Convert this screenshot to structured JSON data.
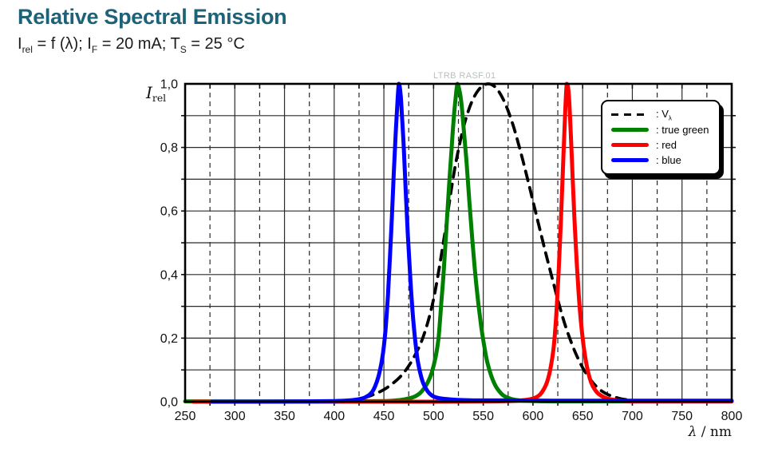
{
  "header": {
    "title": "Relative Spectral Emission",
    "title_color": "#1e6278",
    "subtitle_parts": [
      {
        "text": "I"
      },
      {
        "sub": "rel"
      },
      {
        "text": " = f (λ); I"
      },
      {
        "sub": "F"
      },
      {
        "text": " = 20 mA; T"
      },
      {
        "sub": "S"
      },
      {
        "text": " = 25 °C"
      }
    ]
  },
  "watermark": {
    "text": "LTRB RASF.01"
  },
  "chart_data": {
    "type": "line",
    "title": "Relative Spectral Emission",
    "condition": "Irel = f (λ); IF = 20 mA; TS = 25 °C",
    "xlabel": "λ / nm",
    "ylabel": "Irel",
    "xlabel_parts": [
      {
        "text": "λ",
        "italic": true
      },
      {
        "text": " / nm"
      }
    ],
    "ylabel_parts": [
      {
        "text": "I",
        "italic": true
      },
      {
        "sub": "rel"
      }
    ],
    "xlim": [
      250,
      800
    ],
    "ylim": [
      0,
      1.0
    ],
    "x_major_step": 50,
    "x_minor_step": 25,
    "y_major_step": 0.2,
    "y_minor_step": 0.1,
    "grid": true,
    "legend_position": "top-right",
    "x_tick_labels": [
      "250",
      "300",
      "350",
      "400",
      "450",
      "500",
      "550",
      "600",
      "650",
      "700",
      "750",
      "800"
    ],
    "y_tick_labels": [
      "0,0",
      "0,2",
      "0,4",
      "0,6",
      "0,8",
      "1,0"
    ],
    "series": [
      {
        "name": "V-lambda",
        "legend_label_parts": [
          {
            "text": ": V"
          },
          {
            "sub": "λ"
          }
        ],
        "color": "#000000",
        "dash": true,
        "peak_nm": 555,
        "points": [
          [
            430,
            0.012
          ],
          [
            440,
            0.023
          ],
          [
            450,
            0.038
          ],
          [
            460,
            0.06
          ],
          [
            470,
            0.091
          ],
          [
            480,
            0.139
          ],
          [
            490,
            0.208
          ],
          [
            500,
            0.323
          ],
          [
            510,
            0.503
          ],
          [
            515,
            0.608
          ],
          [
            520,
            0.71
          ],
          [
            525,
            0.793
          ],
          [
            530,
            0.862
          ],
          [
            535,
            0.915
          ],
          [
            540,
            0.954
          ],
          [
            545,
            0.98
          ],
          [
            550,
            0.995
          ],
          [
            555,
            1.0
          ],
          [
            560,
            0.995
          ],
          [
            565,
            0.979
          ],
          [
            570,
            0.952
          ],
          [
            575,
            0.915
          ],
          [
            580,
            0.87
          ],
          [
            585,
            0.816
          ],
          [
            590,
            0.757
          ],
          [
            595,
            0.695
          ],
          [
            600,
            0.631
          ],
          [
            605,
            0.567
          ],
          [
            610,
            0.503
          ],
          [
            615,
            0.441
          ],
          [
            620,
            0.381
          ],
          [
            625,
            0.321
          ],
          [
            630,
            0.265
          ],
          [
            635,
            0.217
          ],
          [
            640,
            0.175
          ],
          [
            645,
            0.138
          ],
          [
            650,
            0.107
          ],
          [
            655,
            0.082
          ],
          [
            660,
            0.061
          ],
          [
            665,
            0.044
          ],
          [
            670,
            0.032
          ],
          [
            675,
            0.023
          ],
          [
            680,
            0.017
          ],
          [
            685,
            0.012
          ],
          [
            690,
            0.008
          ],
          [
            695,
            0.006
          ],
          [
            700,
            0.004
          ]
        ]
      },
      {
        "name": "true green",
        "legend_label_parts": [
          {
            "text": ": true green"
          }
        ],
        "color": "#008000",
        "dash": false,
        "peak_nm": 524,
        "points": [
          [
            250,
            0.001
          ],
          [
            300,
            0.001
          ],
          [
            400,
            0.001
          ],
          [
            450,
            0.002
          ],
          [
            462,
            0.004
          ],
          [
            470,
            0.007
          ],
          [
            476,
            0.011
          ],
          [
            481,
            0.016
          ],
          [
            486,
            0.026
          ],
          [
            490,
            0.04
          ],
          [
            494,
            0.06
          ],
          [
            498,
            0.09
          ],
          [
            502,
            0.14
          ],
          [
            505,
            0.2
          ],
          [
            508,
            0.32
          ],
          [
            510,
            0.4
          ],
          [
            512,
            0.5
          ],
          [
            514,
            0.6
          ],
          [
            516,
            0.7
          ],
          [
            518,
            0.79
          ],
          [
            520,
            0.88
          ],
          [
            522,
            0.95
          ],
          [
            524,
            1.0
          ],
          [
            526,
            0.98
          ],
          [
            528,
            0.94
          ],
          [
            530,
            0.87
          ],
          [
            533,
            0.76
          ],
          [
            536,
            0.63
          ],
          [
            539,
            0.51
          ],
          [
            542,
            0.4
          ],
          [
            545,
            0.31
          ],
          [
            548,
            0.235
          ],
          [
            551,
            0.175
          ],
          [
            554,
            0.125
          ],
          [
            558,
            0.082
          ],
          [
            562,
            0.052
          ],
          [
            566,
            0.033
          ],
          [
            570,
            0.02
          ],
          [
            575,
            0.012
          ],
          [
            580,
            0.007
          ],
          [
            586,
            0.004
          ],
          [
            592,
            0.003
          ],
          [
            600,
            0.002
          ],
          [
            620,
            0.001
          ],
          [
            700,
            0.001
          ],
          [
            800,
            0.001
          ]
        ]
      },
      {
        "name": "red",
        "legend_label_parts": [
          {
            "text": ": red"
          }
        ],
        "color": "#ff0000",
        "dash": false,
        "peak_nm": 634,
        "points": [
          [
            258,
            0
          ],
          [
            300,
            0
          ],
          [
            400,
            0
          ],
          [
            500,
            0
          ],
          [
            550,
            0.001
          ],
          [
            575,
            0.002
          ],
          [
            588,
            0.004
          ],
          [
            596,
            0.007
          ],
          [
            602,
            0.012
          ],
          [
            607,
            0.022
          ],
          [
            611,
            0.04
          ],
          [
            614,
            0.06
          ],
          [
            617,
            0.095
          ],
          [
            620,
            0.15
          ],
          [
            622,
            0.21
          ],
          [
            624,
            0.3
          ],
          [
            626,
            0.42
          ],
          [
            628,
            0.56
          ],
          [
            630,
            0.72
          ],
          [
            632,
            0.88
          ],
          [
            634,
            1.0
          ],
          [
            636,
            0.97
          ],
          [
            638,
            0.85
          ],
          [
            640,
            0.7
          ],
          [
            642,
            0.56
          ],
          [
            644,
            0.44
          ],
          [
            646,
            0.34
          ],
          [
            648,
            0.26
          ],
          [
            651,
            0.175
          ],
          [
            654,
            0.115
          ],
          [
            657,
            0.075
          ],
          [
            660,
            0.05
          ],
          [
            664,
            0.031
          ],
          [
            668,
            0.02
          ],
          [
            673,
            0.012
          ],
          [
            679,
            0.007
          ],
          [
            686,
            0.004
          ],
          [
            694,
            0.002
          ],
          [
            705,
            0.001
          ],
          [
            750,
            0.001
          ],
          [
            800,
            0.001
          ]
        ]
      },
      {
        "name": "blue",
        "legend_label_parts": [
          {
            "text": ": blue"
          }
        ],
        "color": "#0000ff",
        "dash": false,
        "peak_nm": 465,
        "points": [
          [
            277,
            0
          ],
          [
            320,
            0
          ],
          [
            370,
            0.001
          ],
          [
            400,
            0.002
          ],
          [
            415,
            0.004
          ],
          [
            425,
            0.008
          ],
          [
            432,
            0.015
          ],
          [
            438,
            0.03
          ],
          [
            442,
            0.055
          ],
          [
            445,
            0.085
          ],
          [
            448,
            0.13
          ],
          [
            450,
            0.175
          ],
          [
            452,
            0.24
          ],
          [
            454,
            0.33
          ],
          [
            456,
            0.45
          ],
          [
            458,
            0.58
          ],
          [
            460,
            0.72
          ],
          [
            462,
            0.85
          ],
          [
            464,
            0.96
          ],
          [
            465,
            1.0
          ],
          [
            466,
            0.99
          ],
          [
            467,
            0.96
          ],
          [
            468,
            0.91
          ],
          [
            470,
            0.8
          ],
          [
            472,
            0.66
          ],
          [
            474,
            0.53
          ],
          [
            476,
            0.42
          ],
          [
            478,
            0.32
          ],
          [
            480,
            0.24
          ],
          [
            482,
            0.18
          ],
          [
            484,
            0.13
          ],
          [
            487,
            0.085
          ],
          [
            490,
            0.055
          ],
          [
            494,
            0.033
          ],
          [
            498,
            0.02
          ],
          [
            503,
            0.013
          ],
          [
            510,
            0.009
          ],
          [
            518,
            0.007
          ],
          [
            530,
            0.005
          ],
          [
            545,
            0.004
          ],
          [
            570,
            0.004
          ],
          [
            620,
            0.003
          ],
          [
            700,
            0.003
          ],
          [
            800,
            0.003
          ]
        ]
      }
    ]
  }
}
